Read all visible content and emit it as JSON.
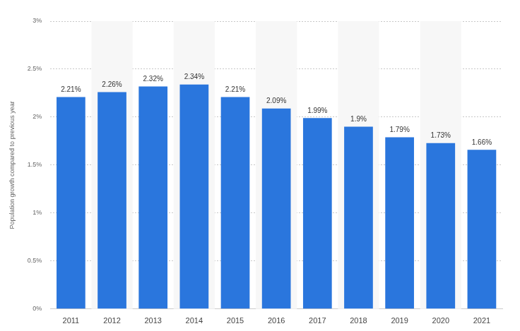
{
  "chart_data": {
    "type": "bar",
    "y_label": "Population growth compared to previous year",
    "categories": [
      "2011",
      "2012",
      "2013",
      "2014",
      "2015",
      "2016",
      "2017",
      "2018",
      "2019",
      "2020",
      "2021"
    ],
    "values": [
      2.21,
      2.26,
      2.32,
      2.34,
      2.21,
      2.09,
      1.99,
      1.9,
      1.79,
      1.73,
      1.66
    ],
    "value_labels": [
      "2.21%",
      "2.26%",
      "2.32%",
      "2.34%",
      "2.21%",
      "2.09%",
      "1.99%",
      "1.9%",
      "1.79%",
      "1.73%",
      "1.66%"
    ],
    "color": "#2a76dd",
    "ylim": [
      0,
      3
    ],
    "yticks": [
      {
        "value": 0,
        "label": "0%"
      },
      {
        "value": 0.5,
        "label": "0.5%"
      },
      {
        "value": 1,
        "label": "1%"
      },
      {
        "value": 1.5,
        "label": "1.5%"
      },
      {
        "value": 2,
        "label": "2%"
      },
      {
        "value": 2.5,
        "label": "2.5%"
      },
      {
        "value": 3,
        "label": "3%"
      }
    ],
    "grid": true,
    "data_labels": true
  }
}
